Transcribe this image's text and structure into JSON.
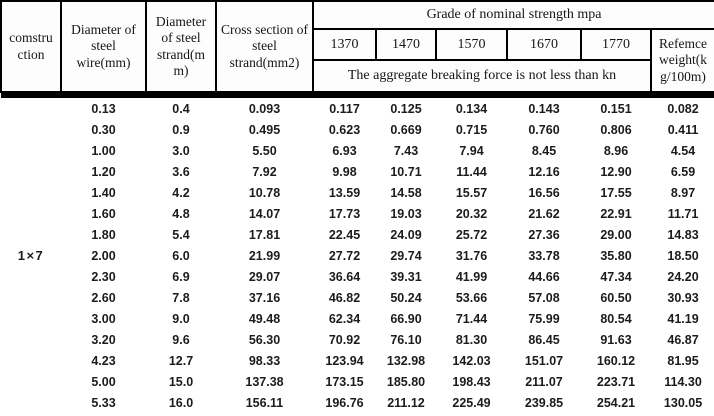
{
  "table": {
    "header": {
      "construction": "comstru ction",
      "wire_diameter": "Diameter of steel wire(mm)",
      "strand_diameter": "Diameter of steel strand(m m)",
      "cross_section": "Cross section of steel strand(mm2)",
      "grade_group": "Grade of nominal strength mpa",
      "grades": [
        "1370",
        "1470",
        "1570",
        "1670",
        "1770"
      ],
      "aggregate_note": "The aggregate breaking force is not less than kn",
      "reference_weight": "Refemce weight(k g/100m)"
    },
    "body": {
      "construction_value": "1×7",
      "columns": [
        "wire_diameter_mm",
        "strand_diameter_mm",
        "cross_section_mm2",
        "breaking_force_1370_kn",
        "breaking_force_1470_kn",
        "breaking_force_1570_kn",
        "breaking_force_1670_kn",
        "breaking_force_1770_kn",
        "reference_weight_kg_per_100m"
      ],
      "rows": [
        [
          "0.13",
          "0.4",
          "0.093",
          "0.117",
          "0.125",
          "0.134",
          "0.143",
          "0.151",
          "0.082"
        ],
        [
          "0.30",
          "0.9",
          "0.495",
          "0.623",
          "0.669",
          "0.715",
          "0.760",
          "0.806",
          "0.411"
        ],
        [
          "1.00",
          "3.0",
          "5.50",
          "6.93",
          "7.43",
          "7.94",
          "8.45",
          "8.96",
          "4.54"
        ],
        [
          "1.20",
          "3.6",
          "7.92",
          "9.98",
          "10.71",
          "11.44",
          "12.16",
          "12.90",
          "6.59"
        ],
        [
          "1.40",
          "4.2",
          "10.78",
          "13.59",
          "14.58",
          "15.57",
          "16.56",
          "17.55",
          "8.97"
        ],
        [
          "1.60",
          "4.8",
          "14.07",
          "17.73",
          "19.03",
          "20.32",
          "21.62",
          "22.91",
          "11.71"
        ],
        [
          "1.80",
          "5.4",
          "17.81",
          "22.45",
          "24.09",
          "25.72",
          "27.36",
          "29.00",
          "14.83"
        ],
        [
          "2.00",
          "6.0",
          "21.99",
          "27.72",
          "29.74",
          "31.76",
          "33.78",
          "35.80",
          "18.50"
        ],
        [
          "2.30",
          "6.9",
          "29.07",
          "36.64",
          "39.31",
          "41.99",
          "44.66",
          "47.34",
          "24.20"
        ],
        [
          "2.60",
          "7.8",
          "37.16",
          "46.82",
          "50.24",
          "53.66",
          "57.08",
          "60.50",
          "30.93"
        ],
        [
          "3.00",
          "9.0",
          "49.48",
          "62.34",
          "66.90",
          "71.44",
          "75.99",
          "80.54",
          "41.19"
        ],
        [
          "3.20",
          "9.6",
          "56.30",
          "70.92",
          "76.10",
          "81.30",
          "86.45",
          "91.63",
          "46.87"
        ],
        [
          "4.23",
          "12.7",
          "98.33",
          "123.94",
          "132.98",
          "142.03",
          "151.07",
          "160.12",
          "81.95"
        ],
        [
          "5.00",
          "15.0",
          "137.38",
          "173.15",
          "185.80",
          "198.43",
          "211.07",
          "223.71",
          "114.30"
        ],
        [
          "5.33",
          "16.0",
          "156.11",
          "196.76",
          "211.12",
          "225.49",
          "239.85",
          "254.21",
          "130.05"
        ]
      ]
    }
  }
}
